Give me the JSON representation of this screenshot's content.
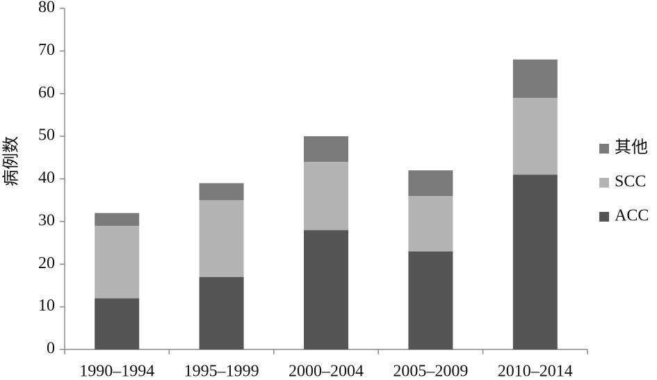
{
  "chart_data": {
    "type": "stacked_bar",
    "y_label": "病例数",
    "categories": [
      "1990–1994",
      "1995–1999",
      "2000–2004",
      "2005–2009",
      "2010–2014"
    ],
    "series": [
      {
        "name": "ACC",
        "color": "#555555",
        "values": [
          12,
          17,
          28,
          23,
          41
        ]
      },
      {
        "name": "SCC",
        "color": "#b3b3b3",
        "values": [
          17,
          18,
          16,
          13,
          18
        ]
      },
      {
        "name": "其他",
        "color": "#7a7a7a",
        "values": [
          3,
          4,
          6,
          6,
          9
        ]
      }
    ],
    "ylim": [
      0,
      80
    ],
    "yticks": [
      0,
      10,
      20,
      30,
      40,
      50,
      60,
      70,
      80
    ],
    "legend": "right"
  }
}
